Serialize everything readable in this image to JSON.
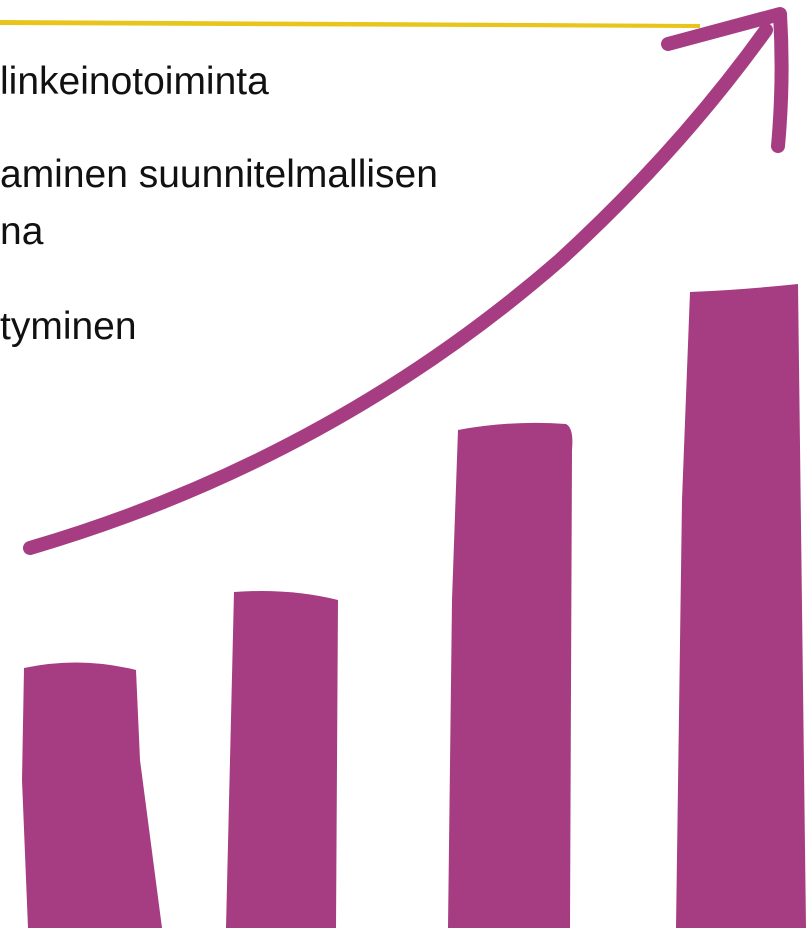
{
  "bullets": [
    "linkeinotoiminta",
    "aminen suunnitelmallisen",
    "na",
    "tyminen"
  ]
}
